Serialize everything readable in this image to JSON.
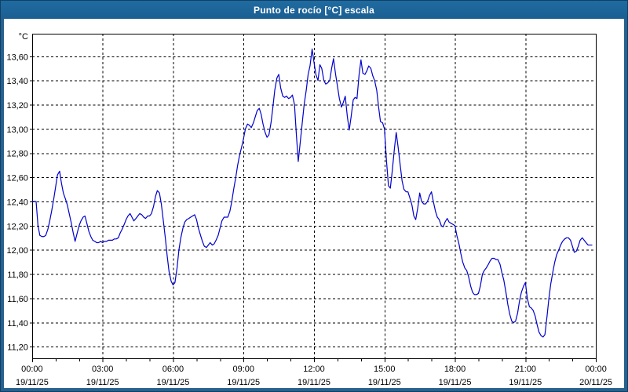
{
  "window": {
    "title": "Punto de rocío [°C] escala",
    "frame_color": "#27628f",
    "titlebar_color": "#1d6499"
  },
  "chart_data": {
    "type": "line",
    "title": "Punto de rocío [°C] escala",
    "y_unit_label": "°C",
    "xlabel": "",
    "ylabel": "°C",
    "grid": "dashed",
    "legend_position": "none",
    "line_color": "#0000cc",
    "grid_color": "#000000",
    "ylim": [
      11.103,
      13.787
    ],
    "xlim_hours": [
      0,
      24
    ],
    "x_minor_tick_every_hours": 1,
    "y_ticks": [
      {
        "value": 13.6,
        "label": "13,60"
      },
      {
        "value": 13.4,
        "label": "13,40"
      },
      {
        "value": 13.2,
        "label": "13,20"
      },
      {
        "value": 13.0,
        "label": "13,00"
      },
      {
        "value": 12.8,
        "label": "12,80"
      },
      {
        "value": 12.6,
        "label": "12,60"
      },
      {
        "value": 12.4,
        "label": "12,40"
      },
      {
        "value": 12.2,
        "label": "12,20"
      },
      {
        "value": 12.0,
        "label": "12,00"
      },
      {
        "value": 11.8,
        "label": "11,80"
      },
      {
        "value": 11.6,
        "label": "11,60"
      },
      {
        "value": 11.4,
        "label": "11,40"
      },
      {
        "value": 11.2,
        "label": "11,20"
      }
    ],
    "x_ticks": [
      {
        "hour": 0,
        "time": "00:00",
        "date": "19/11/25"
      },
      {
        "hour": 3,
        "time": "03:00",
        "date": "19/11/25"
      },
      {
        "hour": 6,
        "time": "06:00",
        "date": "19/11/25"
      },
      {
        "hour": 9,
        "time": "09:00",
        "date": "19/11/25"
      },
      {
        "hour": 12,
        "time": "12:00",
        "date": "19/11/25"
      },
      {
        "hour": 15,
        "time": "15:00",
        "date": "19/11/25"
      },
      {
        "hour": 18,
        "time": "18:00",
        "date": "19/11/25"
      },
      {
        "hour": 21,
        "time": "21:00",
        "date": "19/11/25"
      },
      {
        "hour": 24,
        "time": "00:00",
        "date": "20/11/25"
      }
    ],
    "series": [
      {
        "name": "Punto de rocío",
        "points": [
          [
            0.0,
            12.4
          ],
          [
            0.08,
            12.4
          ],
          [
            0.17,
            12.4
          ],
          [
            0.25,
            12.2
          ],
          [
            0.33,
            12.12
          ],
          [
            0.42,
            12.11
          ],
          [
            0.5,
            12.11
          ],
          [
            0.58,
            12.12
          ],
          [
            0.67,
            12.17
          ],
          [
            0.75,
            12.24
          ],
          [
            0.83,
            12.32
          ],
          [
            0.92,
            12.42
          ],
          [
            1.0,
            12.52
          ],
          [
            1.08,
            12.62
          ],
          [
            1.17,
            12.65
          ],
          [
            1.25,
            12.55
          ],
          [
            1.33,
            12.47
          ],
          [
            1.42,
            12.42
          ],
          [
            1.5,
            12.37
          ],
          [
            1.58,
            12.3
          ],
          [
            1.67,
            12.22
          ],
          [
            1.75,
            12.14
          ],
          [
            1.83,
            12.07
          ],
          [
            1.92,
            12.14
          ],
          [
            2.0,
            12.2
          ],
          [
            2.08,
            12.24
          ],
          [
            2.17,
            12.27
          ],
          [
            2.25,
            12.28
          ],
          [
            2.33,
            12.22
          ],
          [
            2.42,
            12.15
          ],
          [
            2.5,
            12.11
          ],
          [
            2.58,
            12.08
          ],
          [
            2.67,
            12.07
          ],
          [
            2.75,
            12.06
          ],
          [
            2.83,
            12.06
          ],
          [
            2.92,
            12.07
          ],
          [
            3.0,
            12.06
          ],
          [
            3.08,
            12.07
          ],
          [
            3.17,
            12.07
          ],
          [
            3.25,
            12.08
          ],
          [
            3.33,
            12.08
          ],
          [
            3.42,
            12.08
          ],
          [
            3.5,
            12.09
          ],
          [
            3.58,
            12.09
          ],
          [
            3.67,
            12.1
          ],
          [
            3.75,
            12.14
          ],
          [
            3.83,
            12.17
          ],
          [
            3.92,
            12.21
          ],
          [
            4.0,
            12.25
          ],
          [
            4.08,
            12.28
          ],
          [
            4.17,
            12.3
          ],
          [
            4.25,
            12.27
          ],
          [
            4.33,
            12.24
          ],
          [
            4.42,
            12.26
          ],
          [
            4.5,
            12.28
          ],
          [
            4.58,
            12.3
          ],
          [
            4.67,
            12.29
          ],
          [
            4.75,
            12.27
          ],
          [
            4.83,
            12.26
          ],
          [
            4.92,
            12.28
          ],
          [
            5.0,
            12.28
          ],
          [
            5.08,
            12.3
          ],
          [
            5.17,
            12.36
          ],
          [
            5.25,
            12.44
          ],
          [
            5.33,
            12.49
          ],
          [
            5.42,
            12.47
          ],
          [
            5.5,
            12.38
          ],
          [
            5.58,
            12.25
          ],
          [
            5.67,
            12.1
          ],
          [
            5.75,
            11.95
          ],
          [
            5.83,
            11.82
          ],
          [
            5.92,
            11.74
          ],
          [
            6.0,
            11.71
          ],
          [
            6.08,
            11.73
          ],
          [
            6.17,
            11.85
          ],
          [
            6.25,
            12.0
          ],
          [
            6.33,
            12.1
          ],
          [
            6.42,
            12.18
          ],
          [
            6.5,
            12.23
          ],
          [
            6.58,
            12.25
          ],
          [
            6.67,
            12.26
          ],
          [
            6.75,
            12.27
          ],
          [
            6.83,
            12.28
          ],
          [
            6.92,
            12.29
          ],
          [
            7.0,
            12.25
          ],
          [
            7.08,
            12.18
          ],
          [
            7.17,
            12.12
          ],
          [
            7.25,
            12.07
          ],
          [
            7.33,
            12.03
          ],
          [
            7.42,
            12.02
          ],
          [
            7.5,
            12.04
          ],
          [
            7.58,
            12.06
          ],
          [
            7.67,
            12.04
          ],
          [
            7.75,
            12.05
          ],
          [
            7.83,
            12.08
          ],
          [
            7.92,
            12.12
          ],
          [
            8.0,
            12.18
          ],
          [
            8.08,
            12.24
          ],
          [
            8.17,
            12.27
          ],
          [
            8.25,
            12.27
          ],
          [
            8.33,
            12.27
          ],
          [
            8.42,
            12.32
          ],
          [
            8.5,
            12.4
          ],
          [
            8.58,
            12.5
          ],
          [
            8.67,
            12.6
          ],
          [
            8.75,
            12.7
          ],
          [
            8.83,
            12.78
          ],
          [
            8.92,
            12.85
          ],
          [
            9.0,
            12.92
          ],
          [
            9.08,
            13.0
          ],
          [
            9.17,
            13.04
          ],
          [
            9.25,
            13.03
          ],
          [
            9.33,
            13.01
          ],
          [
            9.42,
            13.05
          ],
          [
            9.5,
            13.1
          ],
          [
            9.58,
            13.15
          ],
          [
            9.67,
            13.17
          ],
          [
            9.75,
            13.12
          ],
          [
            9.83,
            13.04
          ],
          [
            9.92,
            12.97
          ],
          [
            10.0,
            12.93
          ],
          [
            10.08,
            12.95
          ],
          [
            10.17,
            13.05
          ],
          [
            10.25,
            13.18
          ],
          [
            10.33,
            13.32
          ],
          [
            10.42,
            13.42
          ],
          [
            10.5,
            13.45
          ],
          [
            10.58,
            13.34
          ],
          [
            10.67,
            13.27
          ],
          [
            10.75,
            13.26
          ],
          [
            10.83,
            13.27
          ],
          [
            10.92,
            13.25
          ],
          [
            11.0,
            13.26
          ],
          [
            11.08,
            13.28
          ],
          [
            11.17,
            13.2
          ],
          [
            11.25,
            12.95
          ],
          [
            11.33,
            12.73
          ],
          [
            11.42,
            12.9
          ],
          [
            11.5,
            13.05
          ],
          [
            11.58,
            13.2
          ],
          [
            11.67,
            13.32
          ],
          [
            11.75,
            13.45
          ],
          [
            11.83,
            13.52
          ],
          [
            11.92,
            13.66
          ],
          [
            12.0,
            13.55
          ],
          [
            12.08,
            13.45
          ],
          [
            12.17,
            13.4
          ],
          [
            12.25,
            13.53
          ],
          [
            12.33,
            13.5
          ],
          [
            12.42,
            13.4
          ],
          [
            12.5,
            13.37
          ],
          [
            12.58,
            13.38
          ],
          [
            12.67,
            13.4
          ],
          [
            12.75,
            13.5
          ],
          [
            12.83,
            13.58
          ],
          [
            12.92,
            13.45
          ],
          [
            13.0,
            13.35
          ],
          [
            13.08,
            13.25
          ],
          [
            13.17,
            13.18
          ],
          [
            13.25,
            13.22
          ],
          [
            13.33,
            13.27
          ],
          [
            13.42,
            13.1
          ],
          [
            13.5,
            12.99
          ],
          [
            13.58,
            13.1
          ],
          [
            13.67,
            13.24
          ],
          [
            13.75,
            13.26
          ],
          [
            13.83,
            13.25
          ],
          [
            13.92,
            13.45
          ],
          [
            14.0,
            13.57
          ],
          [
            14.08,
            13.46
          ],
          [
            14.17,
            13.45
          ],
          [
            14.25,
            13.48
          ],
          [
            14.33,
            13.52
          ],
          [
            14.42,
            13.5
          ],
          [
            14.5,
            13.44
          ],
          [
            14.58,
            13.4
          ],
          [
            14.67,
            13.32
          ],
          [
            14.75,
            13.18
          ],
          [
            14.83,
            13.06
          ],
          [
            14.92,
            13.05
          ],
          [
            15.0,
            13.0
          ],
          [
            15.08,
            12.75
          ],
          [
            15.17,
            12.53
          ],
          [
            15.25,
            12.51
          ],
          [
            15.33,
            12.65
          ],
          [
            15.42,
            12.83
          ],
          [
            15.5,
            12.97
          ],
          [
            15.58,
            12.85
          ],
          [
            15.67,
            12.7
          ],
          [
            15.75,
            12.57
          ],
          [
            15.83,
            12.5
          ],
          [
            15.92,
            12.48
          ],
          [
            16.0,
            12.48
          ],
          [
            16.08,
            12.43
          ],
          [
            16.17,
            12.37
          ],
          [
            16.25,
            12.28
          ],
          [
            16.33,
            12.25
          ],
          [
            16.42,
            12.35
          ],
          [
            16.5,
            12.47
          ],
          [
            16.58,
            12.4
          ],
          [
            16.67,
            12.38
          ],
          [
            16.75,
            12.38
          ],
          [
            16.83,
            12.4
          ],
          [
            16.92,
            12.45
          ],
          [
            17.0,
            12.48
          ],
          [
            17.08,
            12.4
          ],
          [
            17.17,
            12.32
          ],
          [
            17.25,
            12.27
          ],
          [
            17.33,
            12.25
          ],
          [
            17.42,
            12.2
          ],
          [
            17.5,
            12.19
          ],
          [
            17.58,
            12.23
          ],
          [
            17.67,
            12.26
          ],
          [
            17.75,
            12.23
          ],
          [
            17.83,
            12.22
          ],
          [
            17.92,
            12.21
          ],
          [
            18.0,
            12.2
          ],
          [
            18.08,
            12.12
          ],
          [
            18.17,
            12.05
          ],
          [
            18.25,
            11.97
          ],
          [
            18.33,
            11.9
          ],
          [
            18.42,
            11.85
          ],
          [
            18.5,
            11.83
          ],
          [
            18.58,
            11.78
          ],
          [
            18.67,
            11.7
          ],
          [
            18.75,
            11.65
          ],
          [
            18.83,
            11.63
          ],
          [
            18.92,
            11.63
          ],
          [
            19.0,
            11.64
          ],
          [
            19.08,
            11.7
          ],
          [
            19.17,
            11.8
          ],
          [
            19.25,
            11.83
          ],
          [
            19.33,
            11.85
          ],
          [
            19.42,
            11.88
          ],
          [
            19.5,
            11.91
          ],
          [
            19.58,
            11.93
          ],
          [
            19.67,
            11.93
          ],
          [
            19.75,
            11.92
          ],
          [
            19.83,
            11.92
          ],
          [
            19.92,
            11.88
          ],
          [
            20.0,
            11.81
          ],
          [
            20.08,
            11.75
          ],
          [
            20.17,
            11.65
          ],
          [
            20.25,
            11.55
          ],
          [
            20.33,
            11.47
          ],
          [
            20.42,
            11.41
          ],
          [
            20.5,
            11.4
          ],
          [
            20.58,
            11.41
          ],
          [
            20.67,
            11.48
          ],
          [
            20.75,
            11.58
          ],
          [
            20.83,
            11.65
          ],
          [
            20.92,
            11.7
          ],
          [
            21.0,
            11.73
          ],
          [
            21.08,
            11.6
          ],
          [
            21.17,
            11.53
          ],
          [
            21.25,
            11.52
          ],
          [
            21.33,
            11.5
          ],
          [
            21.42,
            11.45
          ],
          [
            21.5,
            11.38
          ],
          [
            21.58,
            11.32
          ],
          [
            21.67,
            11.29
          ],
          [
            21.75,
            11.28
          ],
          [
            21.83,
            11.3
          ],
          [
            21.92,
            11.45
          ],
          [
            22.0,
            11.6
          ],
          [
            22.08,
            11.72
          ],
          [
            22.17,
            11.82
          ],
          [
            22.25,
            11.9
          ],
          [
            22.33,
            11.96
          ],
          [
            22.42,
            12.0
          ],
          [
            22.5,
            12.04
          ],
          [
            22.58,
            12.07
          ],
          [
            22.67,
            12.09
          ],
          [
            22.75,
            12.1
          ],
          [
            22.83,
            12.1
          ],
          [
            22.92,
            12.08
          ],
          [
            23.0,
            12.03
          ],
          [
            23.08,
            11.98
          ],
          [
            23.17,
            11.99
          ],
          [
            23.25,
            12.03
          ],
          [
            23.33,
            12.08
          ],
          [
            23.42,
            12.1
          ],
          [
            23.5,
            12.08
          ],
          [
            23.58,
            12.06
          ],
          [
            23.67,
            12.04
          ],
          [
            23.75,
            12.04
          ],
          [
            23.83,
            12.04
          ]
        ]
      }
    ]
  }
}
